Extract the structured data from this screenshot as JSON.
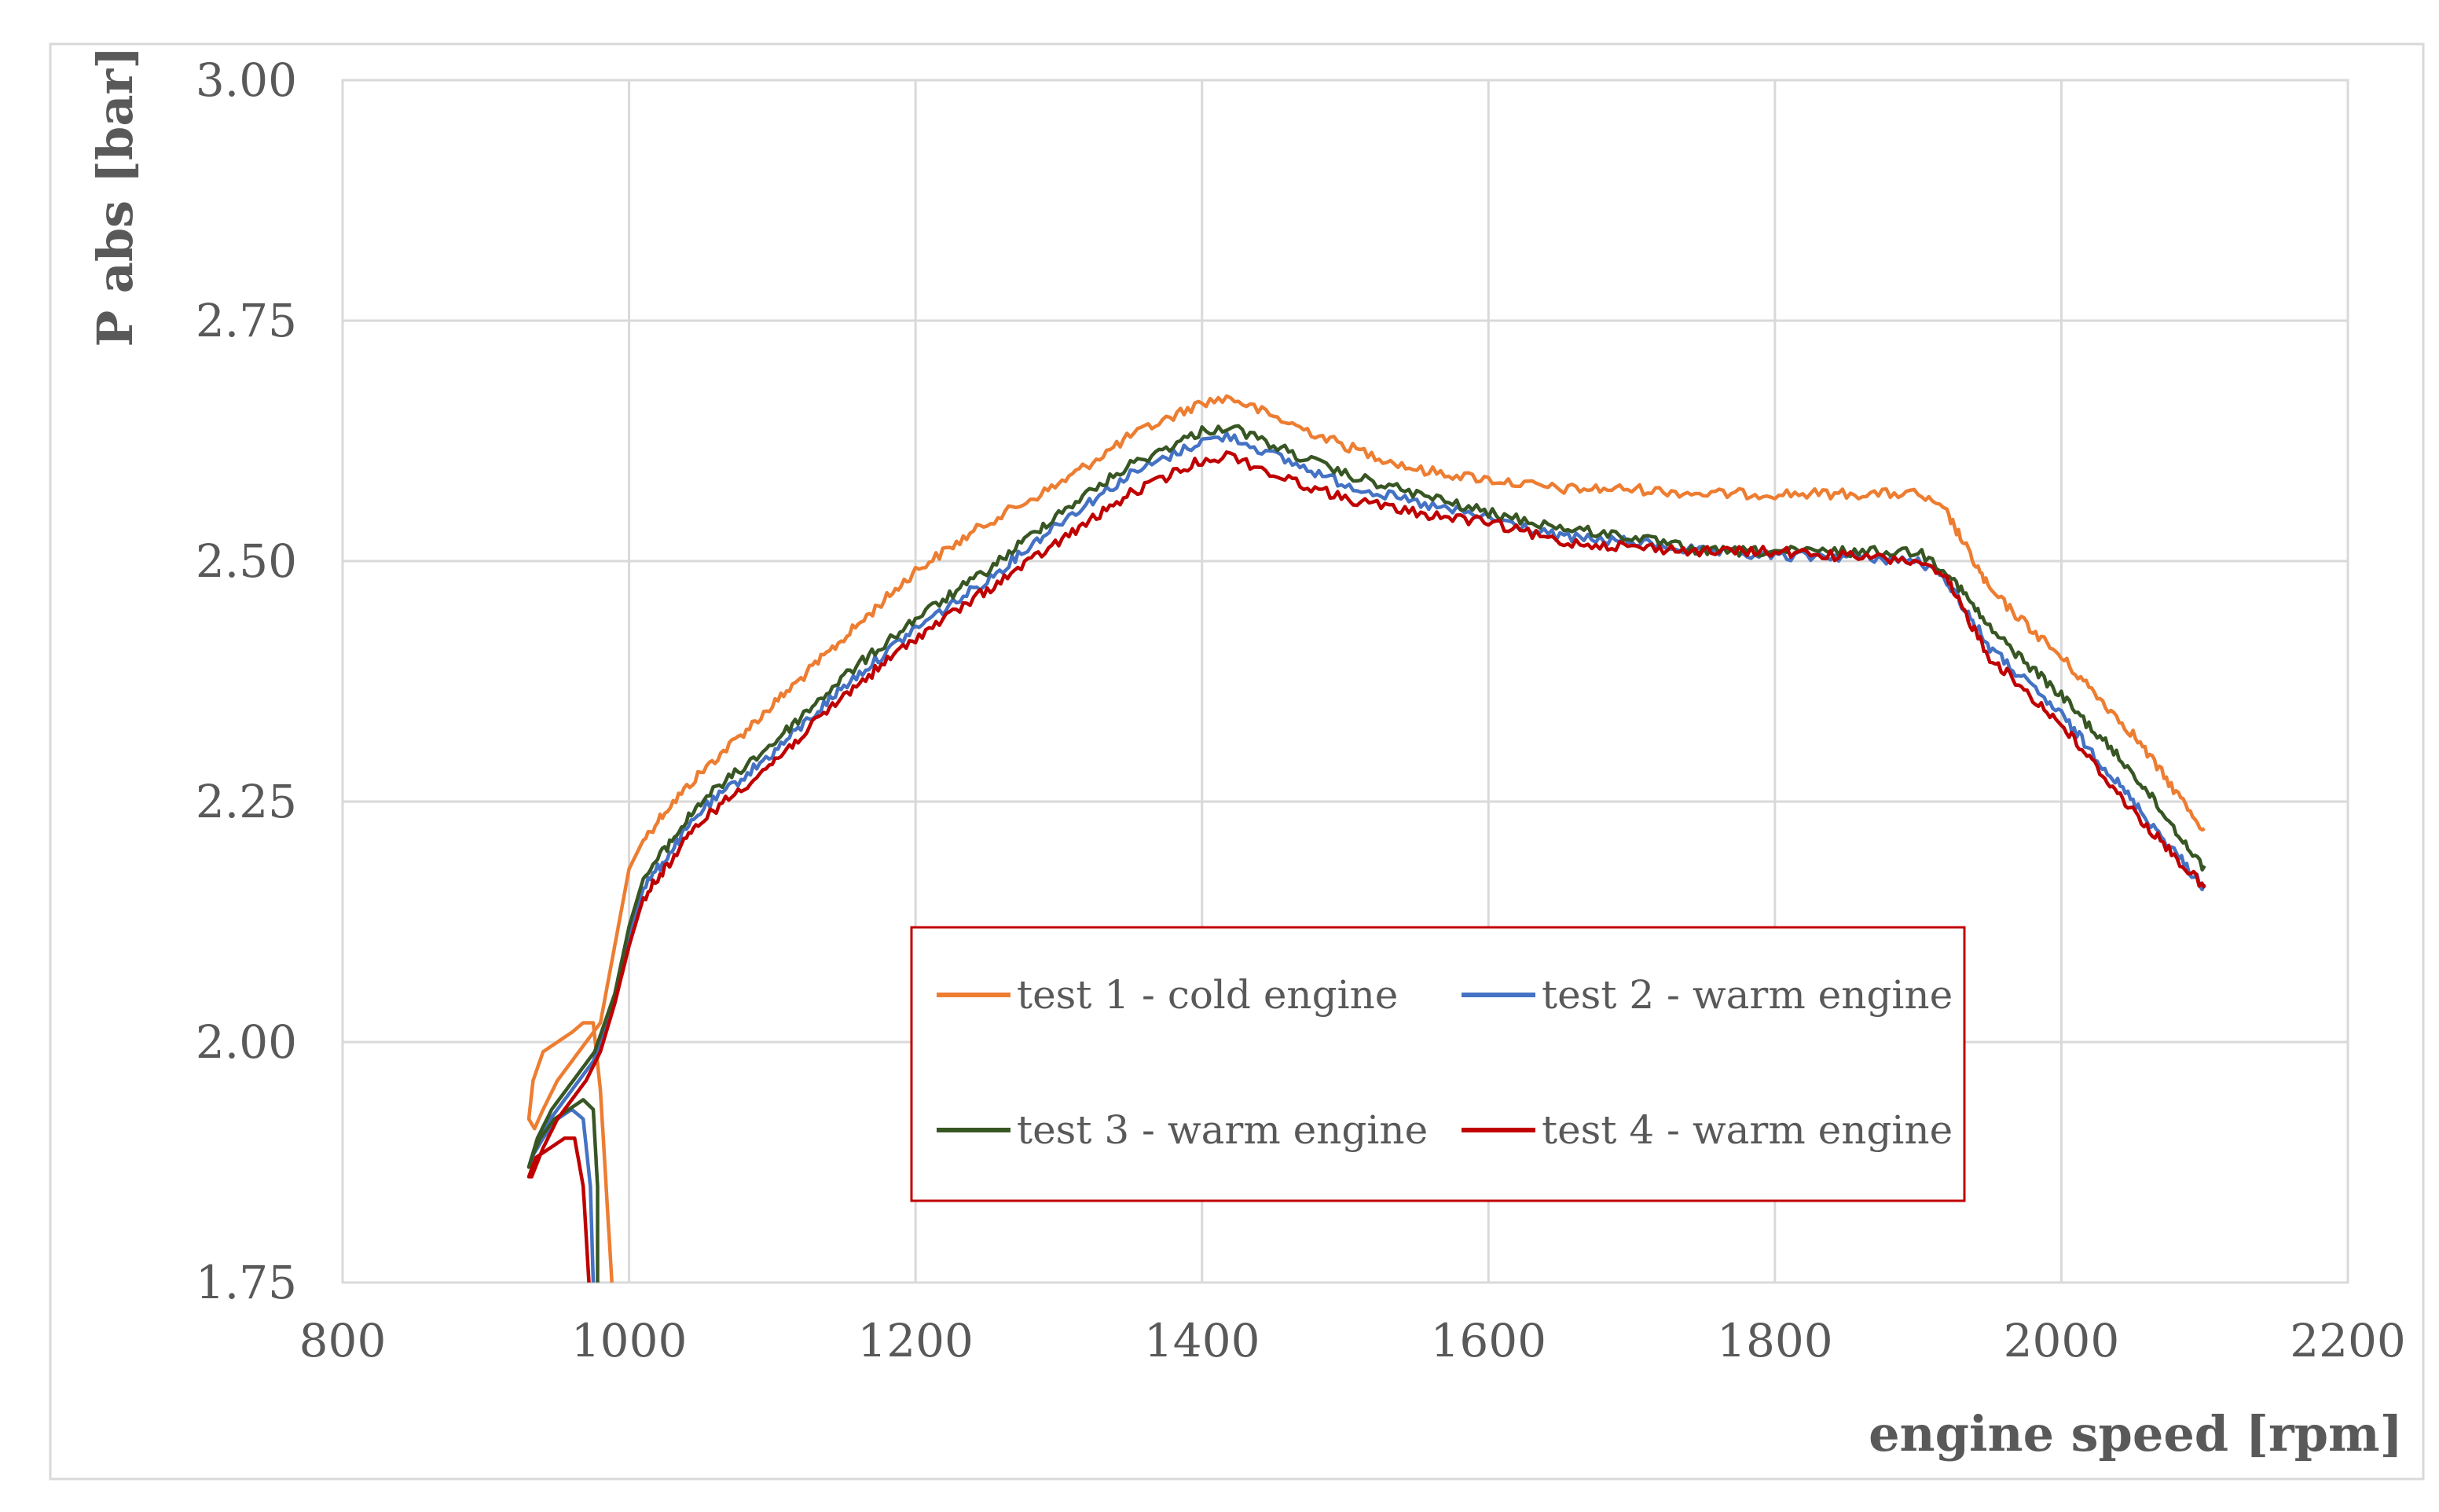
{
  "chart_data": {
    "type": "line",
    "title": "",
    "xlabel": "engine speed [rpm]",
    "ylabel": "P abs [bar]",
    "xlim": [
      800,
      2200
    ],
    "ylim": [
      1.75,
      3.0
    ],
    "grid": true,
    "x_ticks": [
      800,
      1000,
      1200,
      1400,
      1600,
      1800,
      2000,
      2200
    ],
    "x_tick_labels": [
      "800",
      "1000",
      "1200",
      "1400",
      "1600",
      "1800",
      "2000",
      "2200"
    ],
    "y_ticks": [
      1.75,
      2.0,
      2.25,
      2.5,
      2.75,
      3.0
    ],
    "y_tick_labels": [
      "1.75",
      "2.00",
      "2.25",
      "2.50",
      "2.75",
      "3.00"
    ],
    "legend_position": "bottom-center",
    "series": [
      {
        "name": "test 1 - cold engine",
        "color": "#ED7D31",
        "x": [
          988,
          984,
          980,
          975,
          968,
          960,
          950,
          940,
          933,
          930,
          934,
          940,
          950,
          960,
          970,
          980,
          990,
          1000,
          1010,
          1025,
          1050,
          1100,
          1150,
          1200,
          1250,
          1300,
          1350,
          1400,
          1420,
          1450,
          1500,
          1550,
          1600,
          1650,
          1700,
          1750,
          1800,
          1850,
          1900,
          1920,
          1950,
          2000,
          2050,
          2100
        ],
        "values": [
          1.75,
          1.85,
          1.95,
          2.02,
          2.02,
          2.01,
          2.0,
          1.99,
          1.96,
          1.92,
          1.91,
          1.93,
          1.96,
          1.98,
          2.0,
          2.02,
          2.1,
          2.18,
          2.21,
          2.24,
          2.28,
          2.35,
          2.42,
          2.49,
          2.54,
          2.58,
          2.63,
          2.665,
          2.67,
          2.65,
          2.62,
          2.595,
          2.585,
          2.575,
          2.575,
          2.57,
          2.57,
          2.57,
          2.57,
          2.55,
          2.47,
          2.4,
          2.32,
          2.22
        ]
      },
      {
        "name": "test 2 - warm engine",
        "color": "#4472C4",
        "x": [
          975,
          973,
          968,
          960,
          950,
          940,
          932,
          930,
          935,
          945,
          955,
          965,
          975,
          990,
          1000,
          1010,
          1025,
          1050,
          1100,
          1150,
          1200,
          1250,
          1300,
          1350,
          1400,
          1420,
          1450,
          1500,
          1550,
          1600,
          1650,
          1700,
          1750,
          1800,
          1850,
          1900,
          1920,
          1950,
          2000,
          2050,
          2100
        ],
        "values": [
          1.75,
          1.85,
          1.92,
          1.93,
          1.92,
          1.9,
          1.88,
          1.87,
          1.89,
          1.92,
          1.94,
          1.96,
          1.98,
          2.04,
          2.11,
          2.16,
          2.19,
          2.24,
          2.3,
          2.37,
          2.43,
          2.48,
          2.54,
          2.59,
          2.625,
          2.63,
          2.61,
          2.58,
          2.56,
          2.545,
          2.525,
          2.52,
          2.51,
          2.505,
          2.505,
          2.5,
          2.48,
          2.41,
          2.34,
          2.25,
          2.16
        ]
      },
      {
        "name": "test 3 - warm engine",
        "color": "#375623",
        "x": [
          978,
          978,
          975,
          968,
          958,
          948,
          938,
          932,
          930,
          936,
          946,
          956,
          966,
          976,
          990,
          1000,
          1010,
          1025,
          1050,
          1100,
          1150,
          1200,
          1250,
          1300,
          1350,
          1400,
          1420,
          1450,
          1500,
          1550,
          1600,
          1650,
          1700,
          1750,
          1800,
          1850,
          1900,
          1920,
          1950,
          2000,
          2050,
          2100
        ],
        "values": [
          1.75,
          1.85,
          1.93,
          1.94,
          1.93,
          1.92,
          1.9,
          1.88,
          1.87,
          1.9,
          1.93,
          1.95,
          1.97,
          1.99,
          2.05,
          2.12,
          2.17,
          2.2,
          2.25,
          2.31,
          2.38,
          2.44,
          2.49,
          2.55,
          2.6,
          2.635,
          2.64,
          2.62,
          2.59,
          2.57,
          2.55,
          2.535,
          2.525,
          2.51,
          2.51,
          2.51,
          2.51,
          2.49,
          2.43,
          2.36,
          2.28,
          2.18
        ]
      },
      {
        "name": "test 4 - warm engine",
        "color": "#C00000",
        "x": [
          972,
          968,
          962,
          955,
          945,
          935,
          930,
          932,
          940,
          950,
          960,
          970,
          980,
          990,
          1000,
          1010,
          1025,
          1050,
          1100,
          1150,
          1200,
          1250,
          1300,
          1350,
          1400,
          1420,
          1450,
          1500,
          1550,
          1600,
          1650,
          1700,
          1750,
          1800,
          1850,
          1900,
          1920,
          1950,
          2000,
          2050,
          2100
        ],
        "values": [
          1.75,
          1.85,
          1.9,
          1.9,
          1.89,
          1.88,
          1.86,
          1.86,
          1.89,
          1.92,
          1.94,
          1.96,
          1.99,
          2.04,
          2.1,
          2.15,
          2.18,
          2.23,
          2.29,
          2.36,
          2.42,
          2.47,
          2.52,
          2.57,
          2.605,
          2.61,
          2.59,
          2.565,
          2.55,
          2.54,
          2.52,
          2.515,
          2.51,
          2.51,
          2.505,
          2.5,
          2.48,
          2.4,
          2.33,
          2.24,
          2.16
        ]
      }
    ]
  }
}
